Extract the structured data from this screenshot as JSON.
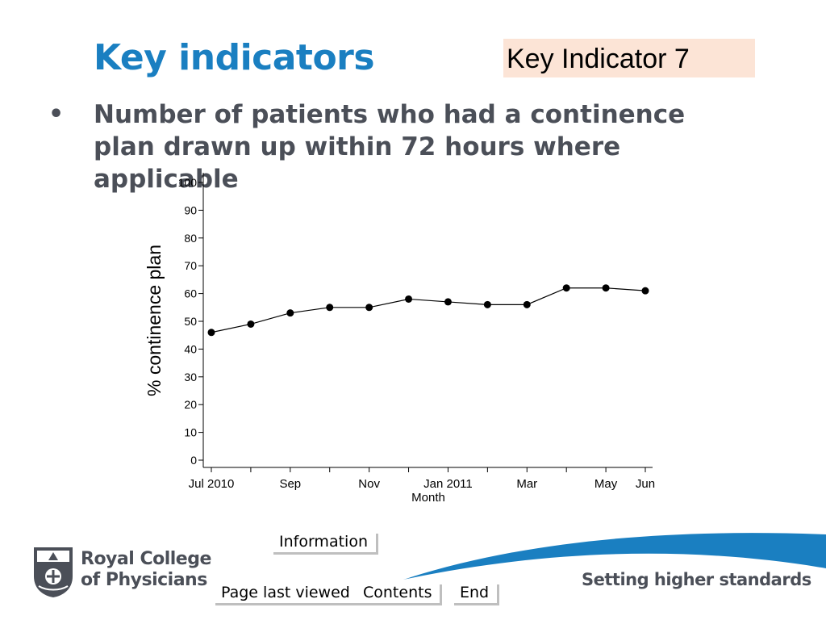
{
  "slide": {
    "title": "Key indicators",
    "badge": "Key Indicator 7",
    "bullet_symbol": "•",
    "bullet_text": "Number of patients who had a continence plan drawn up within 72 hours where applicable"
  },
  "nav": {
    "information": "Information",
    "page_last_viewed": "Page last viewed",
    "contents": "Contents",
    "end": "End"
  },
  "footer": {
    "org_line1": "Royal College",
    "org_line2": "of Physicians",
    "tagline": "Setting higher standards",
    "accent_color": "#1a7fc1"
  },
  "chart_data": {
    "type": "line",
    "title": "",
    "xlabel": "Month",
    "ylabel": "% continence plan",
    "ylim": [
      0,
      100
    ],
    "yticks": [
      0,
      10,
      20,
      30,
      40,
      50,
      60,
      70,
      80,
      90,
      100
    ],
    "x": [
      "2010-07",
      "2010-08",
      "2010-09",
      "2010-10",
      "2010-11",
      "2010-12",
      "2011-01",
      "2011-02",
      "2011-03",
      "2011-04",
      "2011-05",
      "2011-06"
    ],
    "xtick_labels": [
      {
        "at": "2010-07",
        "label": "Jul 2010"
      },
      {
        "at": "2010-09",
        "label": "Sep"
      },
      {
        "at": "2010-11",
        "label": "Nov"
      },
      {
        "at": "2011-01",
        "label": "Jan 2011"
      },
      {
        "at": "2011-03",
        "label": "Mar"
      },
      {
        "at": "2011-05",
        "label": "May"
      },
      {
        "at": "2011-06",
        "label": "Jun"
      }
    ],
    "values": [
      46,
      49,
      53,
      55,
      55,
      58,
      57,
      56,
      56,
      62,
      62,
      61
    ],
    "grid": false
  }
}
